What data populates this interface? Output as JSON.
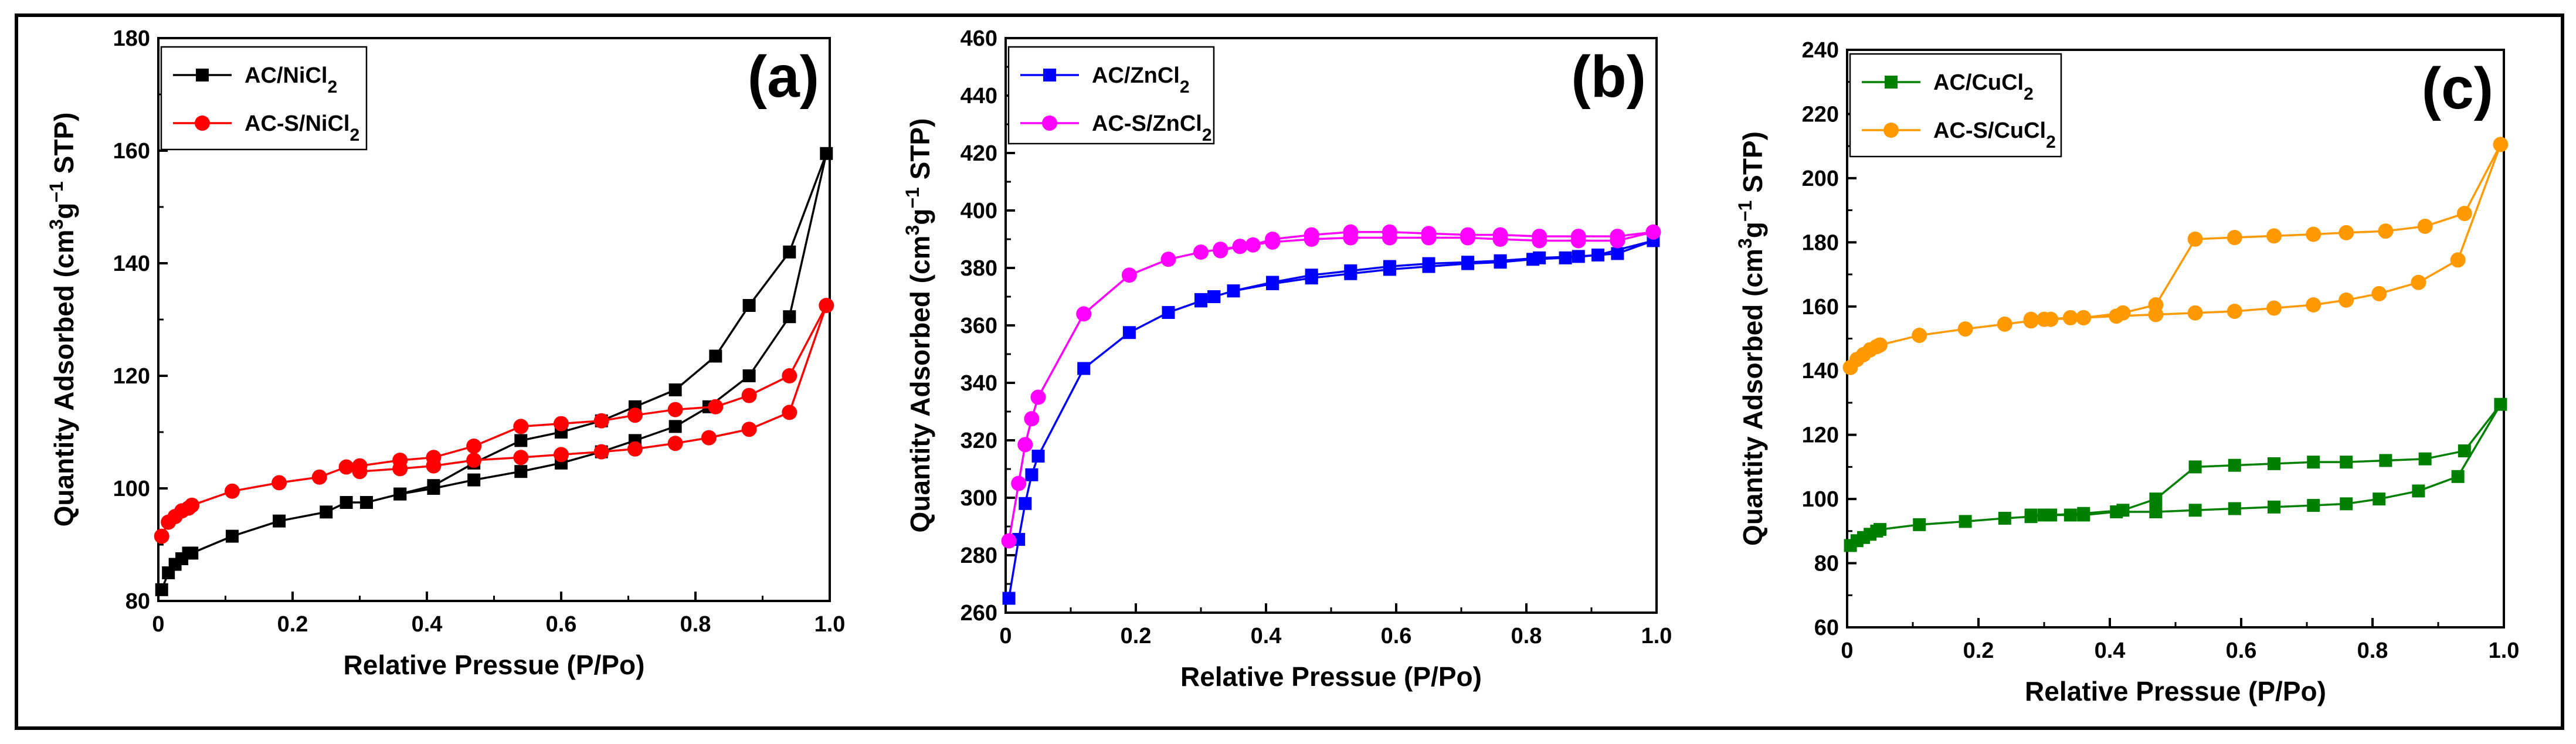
{
  "chart_data": [
    {
      "type": "line",
      "panel_label": "(a)",
      "xlabel": "Relative Pressue (P/Po)",
      "ylabel": "Quantity Adsorbed (cm³g⁻¹ STP)",
      "ylabel_parts": [
        "Quantity Adsorbed (cm",
        "3",
        "g",
        "−1",
        " STP)"
      ],
      "xlim": [
        0,
        1.0
      ],
      "ylim": [
        80,
        180
      ],
      "xticks": [
        0,
        0.2,
        0.4,
        0.6,
        0.8,
        1.0
      ],
      "xtick_labels": [
        "0",
        "0.2",
        "0.4",
        "0.6",
        "0.8",
        "1.0"
      ],
      "yticks": [
        80,
        100,
        120,
        140,
        160,
        180
      ],
      "ytick_labels": [
        "80",
        "100",
        "120",
        "140",
        "160",
        "180"
      ],
      "legend_position": "top-left",
      "series": [
        {
          "name": "AC/NiCl2",
          "label_base": "AC/NiCl",
          "label_sub": "2",
          "color": "#000000",
          "marker": "square",
          "x": [
            0.005,
            0.015,
            0.025,
            0.035,
            0.045,
            0.05,
            0.11,
            0.18,
            0.25,
            0.28,
            0.31,
            0.36,
            0.41,
            0.47,
            0.54,
            0.6,
            0.66,
            0.71,
            0.77,
            0.82,
            0.88,
            0.94,
            0.995,
            0.94,
            0.88,
            0.83,
            0.77,
            0.71,
            0.66,
            0.6,
            0.54,
            0.47,
            0.41,
            0.36,
            0.31
          ],
          "y": [
            82,
            85,
            86.5,
            87.5,
            88.5,
            88.5,
            91.5,
            94.2,
            95.8,
            97.5,
            97.5,
            99,
            100,
            101.5,
            103,
            104.5,
            106.5,
            108.5,
            111,
            114.5,
            120,
            130.5,
            159.5,
            142,
            132.5,
            123.5,
            117.5,
            114.5,
            112,
            110,
            108.5,
            104.5,
            100.5,
            99,
            97.5
          ]
        },
        {
          "name": "AC-S/NiCl2",
          "label_base": "AC-S/NiCl",
          "label_sub": "2",
          "color": "#ff0000",
          "marker": "circle",
          "x": [
            0.005,
            0.015,
            0.025,
            0.035,
            0.045,
            0.05,
            0.11,
            0.18,
            0.24,
            0.28,
            0.3,
            0.36,
            0.41,
            0.47,
            0.54,
            0.6,
            0.66,
            0.71,
            0.77,
            0.82,
            0.88,
            0.94,
            0.995,
            0.94,
            0.88,
            0.83,
            0.77,
            0.71,
            0.66,
            0.6,
            0.54,
            0.47,
            0.41,
            0.36,
            0.3
          ],
          "y": [
            91.5,
            94,
            95,
            96,
            96.5,
            97,
            99.5,
            101,
            102,
            103.8,
            103,
            103.5,
            104,
            105,
            105.5,
            106,
            106.5,
            107,
            108,
            109,
            110.5,
            113.5,
            132.5,
            120,
            116.5,
            114.5,
            114,
            113,
            112,
            111.5,
            111,
            107.5,
            105.5,
            105,
            104
          ]
        }
      ]
    },
    {
      "type": "line",
      "panel_label": "(b)",
      "xlabel": "Relative Pressue (P/Po)",
      "ylabel": "Quantity Adsorbed (cm³g⁻¹ STP)",
      "ylabel_parts": [
        "Quantity Adsorbed (cm",
        "3",
        "g",
        "−1",
        " STP)"
      ],
      "xlim": [
        0,
        1.0
      ],
      "ylim": [
        260,
        460
      ],
      "xticks": [
        0,
        0.2,
        0.4,
        0.6,
        0.8,
        1.0
      ],
      "xtick_labels": [
        "0",
        "0.2",
        "0.4",
        "0.6",
        "0.8",
        "1.0"
      ],
      "yticks": [
        260,
        280,
        300,
        320,
        340,
        360,
        380,
        400,
        420,
        440,
        460
      ],
      "ytick_labels": [
        "260",
        "280",
        "300",
        "320",
        "340",
        "360",
        "380",
        "400",
        "420",
        "440",
        "460"
      ],
      "legend_position": "top-left",
      "series": [
        {
          "name": "AC/ZnCl2",
          "label_base": "AC/ZnCl",
          "label_sub": "2",
          "color": "#0000ff",
          "marker": "square",
          "x": [
            0.005,
            0.02,
            0.03,
            0.04,
            0.05,
            0.12,
            0.19,
            0.25,
            0.3,
            0.32,
            0.35,
            0.41,
            0.47,
            0.53,
            0.59,
            0.65,
            0.71,
            0.76,
            0.81,
            0.86,
            0.91,
            0.995,
            0.94,
            0.88,
            0.82,
            0.76,
            0.71,
            0.65,
            0.59,
            0.53,
            0.47,
            0.41,
            0.35,
            0.32,
            0.3
          ],
          "y": [
            265,
            285.5,
            298,
            308,
            314.5,
            345,
            357.5,
            364.5,
            368.5,
            370,
            372,
            374.5,
            376.5,
            378,
            379.5,
            380.5,
            381.5,
            382,
            383,
            383.5,
            384.5,
            389.5,
            385,
            384,
            383.5,
            382.5,
            382,
            381.5,
            380.5,
            379,
            377.5,
            375,
            372,
            370,
            369
          ]
        },
        {
          "name": "AC-S/ZnCl2",
          "label_base": "AC-S/ZnCl",
          "label_sub": "2",
          "color": "#ff00ff",
          "marker": "circle",
          "x": [
            0.005,
            0.02,
            0.03,
            0.04,
            0.05,
            0.12,
            0.19,
            0.25,
            0.3,
            0.33,
            0.36,
            0.41,
            0.47,
            0.53,
            0.59,
            0.65,
            0.71,
            0.76,
            0.82,
            0.88,
            0.94,
            0.995,
            0.94,
            0.88,
            0.82,
            0.76,
            0.71,
            0.65,
            0.59,
            0.53,
            0.47,
            0.41,
            0.38,
            0.36,
            0.33
          ],
          "y": [
            285,
            305,
            318.5,
            327.5,
            335,
            364,
            377.5,
            383,
            385.5,
            386.5,
            387.5,
            389,
            390,
            390.5,
            390.5,
            390.5,
            390.5,
            390,
            389.5,
            389.5,
            389.5,
            392.5,
            391,
            391,
            391,
            391.5,
            391.5,
            392,
            392.5,
            392.5,
            391.5,
            390,
            388,
            387.5,
            386
          ]
        }
      ]
    },
    {
      "type": "line",
      "panel_label": "(c)",
      "xlabel": "Relative Pressue (P/Po)",
      "ylabel": "Quantity Adsorbed (cm³g⁻¹ STP)",
      "ylabel_parts": [
        "Quantity Adsorbed (cm",
        "3",
        "g",
        "−1",
        " STP)"
      ],
      "xlim": [
        0,
        1.0
      ],
      "ylim": [
        60,
        240
      ],
      "xticks": [
        0,
        0.2,
        0.4,
        0.6,
        0.8,
        1.0
      ],
      "xtick_labels": [
        "0",
        "0.2",
        "0.4",
        "0.6",
        "0.8",
        "1.0"
      ],
      "yticks": [
        60,
        80,
        100,
        120,
        140,
        160,
        180,
        200,
        220,
        240
      ],
      "ytick_labels": [
        "60",
        "80",
        "100",
        "120",
        "140",
        "160",
        "180",
        "200",
        "220",
        "240"
      ],
      "legend_position": "top-left",
      "series": [
        {
          "name": "AC/CuCl2",
          "label_base": "AC/CuCl",
          "label_sub": "2",
          "color": "#008000",
          "marker": "square",
          "x": [
            0.005,
            0.015,
            0.025,
            0.035,
            0.045,
            0.05,
            0.11,
            0.18,
            0.24,
            0.28,
            0.3,
            0.34,
            0.36,
            0.41,
            0.47,
            0.53,
            0.59,
            0.65,
            0.71,
            0.76,
            0.81,
            0.87,
            0.93,
            0.995,
            0.94,
            0.88,
            0.82,
            0.76,
            0.71,
            0.65,
            0.59,
            0.53,
            0.47,
            0.42,
            0.36,
            0.31,
            0.28
          ],
          "y": [
            85.5,
            87,
            88,
            89,
            90,
            90.5,
            92,
            93,
            94,
            94.5,
            95,
            95,
            95,
            96,
            96,
            96.5,
            97,
            97.5,
            98,
            98.5,
            100,
            102.5,
            107,
            129.5,
            115,
            112.5,
            112,
            111.5,
            111.5,
            111,
            110.5,
            110,
            100,
            96.5,
            95.5,
            95,
            95
          ]
        },
        {
          "name": "AC-S/CuCl2",
          "label_base": "AC-S/CuCl",
          "label_sub": "2",
          "color": "#ff9900",
          "marker": "circle",
          "x": [
            0.005,
            0.015,
            0.025,
            0.035,
            0.045,
            0.05,
            0.11,
            0.18,
            0.24,
            0.28,
            0.3,
            0.34,
            0.36,
            0.41,
            0.47,
            0.53,
            0.59,
            0.65,
            0.71,
            0.76,
            0.81,
            0.87,
            0.93,
            0.995,
            0.94,
            0.88,
            0.82,
            0.76,
            0.71,
            0.65,
            0.59,
            0.53,
            0.47,
            0.42,
            0.36,
            0.31,
            0.28
          ],
          "y": [
            141,
            143.5,
            145,
            146.5,
            147.5,
            148,
            151,
            153,
            154.5,
            155.5,
            156,
            156.5,
            156.5,
            157,
            157.5,
            158,
            158.5,
            159.5,
            160.5,
            162,
            164,
            167.5,
            174.5,
            210.5,
            189,
            185,
            183.5,
            183,
            182.5,
            182,
            181.5,
            181,
            160.5,
            158,
            156.5,
            156,
            156
          ]
        }
      ]
    }
  ]
}
